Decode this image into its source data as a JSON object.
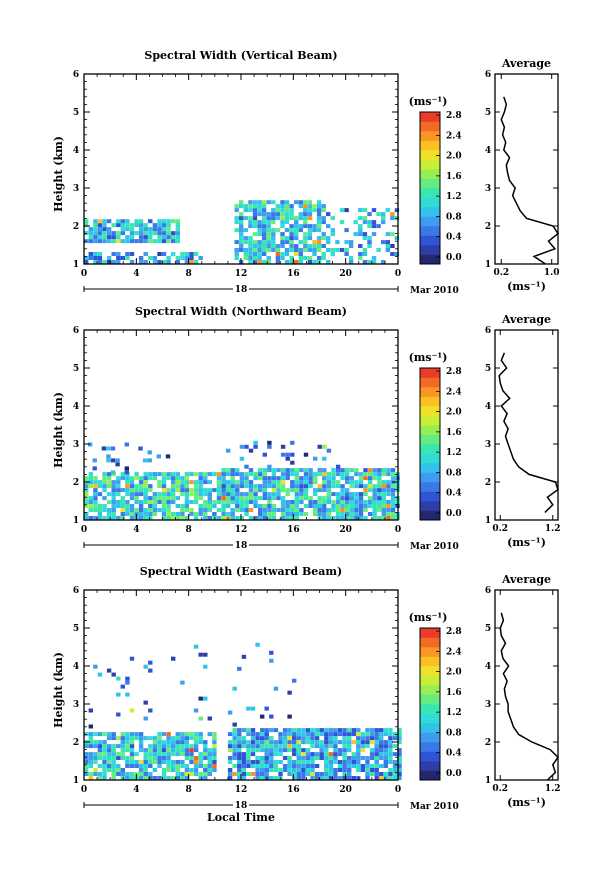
{
  "x_axis": {
    "ticks": [
      "0",
      "4",
      "8",
      "12",
      "16",
      "20",
      "0"
    ],
    "day": "18",
    "month": "Mar 2010",
    "label": "Local Time",
    "range": [
      0,
      24
    ]
  },
  "y_axis": {
    "label": "Height (km)",
    "ticks": [
      "1",
      "2",
      "3",
      "4",
      "5",
      "6"
    ],
    "range": [
      1,
      6
    ]
  },
  "colorbar": {
    "unit": "(ms⁻¹)",
    "ticks": [
      "0.0",
      "0.4",
      "0.8",
      "1.2",
      "1.6",
      "2.0",
      "2.4",
      "2.8"
    ],
    "colors": [
      "#23286e",
      "#2e3ea6",
      "#2f55d6",
      "#3a78e8",
      "#3f9cee",
      "#33c2e8",
      "#2fdcd6",
      "#3ae6b0",
      "#63ec82",
      "#97ef55",
      "#c8ee35",
      "#f0e22b",
      "#fbc024",
      "#fa9622",
      "#f46a24",
      "#eb3b2a"
    ]
  },
  "chart_data": [
    {
      "type": "heatmap",
      "title": "Spectral Width (Vertical Beam)",
      "xlabel": "",
      "ylabel": "Height (km)",
      "xlim": [
        0,
        24
      ],
      "ylim": [
        1,
        6
      ],
      "zlim": [
        0,
        3.0
      ],
      "regions": [
        {
          "t0": 0.0,
          "t1": 7.0,
          "h0": 1.55,
          "h1": 2.15,
          "base": 1.0,
          "density": 0.8
        },
        {
          "t0": 0.0,
          "t1": 9.0,
          "h0": 1.0,
          "h1": 1.3,
          "base": 0.9,
          "density": 0.6
        },
        {
          "t0": 11.5,
          "t1": 18.5,
          "h0": 1.0,
          "h1": 2.6,
          "base": 1.1,
          "density": 0.75
        },
        {
          "t0": 18.5,
          "t1": 24.0,
          "h0": 1.0,
          "h1": 2.4,
          "base": 0.9,
          "density": 0.35
        }
      ],
      "profile": {
        "title": "Average",
        "xlabel": "(ms⁻¹)",
        "xticks": [
          "0.2",
          "1.0"
        ],
        "xlim": [
          0.1,
          1.1
        ],
        "heights": [
          1.0,
          1.2,
          1.4,
          1.6,
          1.8,
          2.0,
          2.2,
          2.4,
          2.6,
          2.8,
          3.0,
          3.2,
          3.4,
          3.6,
          3.8,
          4.0,
          4.2,
          4.4,
          4.6,
          4.8,
          5.0,
          5.2,
          5.4
        ],
        "values": [
          0.9,
          0.72,
          1.05,
          0.95,
          1.1,
          1.02,
          0.6,
          0.5,
          0.44,
          0.38,
          0.42,
          0.33,
          0.3,
          0.28,
          0.33,
          0.24,
          0.27,
          0.22,
          0.25,
          0.2,
          0.25,
          0.28,
          0.24
        ]
      }
    },
    {
      "type": "heatmap",
      "title": "Spectral Width (Northward Beam)",
      "xlabel": "",
      "ylabel": "Height (km)",
      "xlim": [
        0,
        24
      ],
      "ylim": [
        1,
        6
      ],
      "zlim": [
        0,
        3.0
      ],
      "regions": [
        {
          "t0": 0.0,
          "t1": 10.5,
          "h0": 1.0,
          "h1": 2.2,
          "base": 1.2,
          "density": 0.8
        },
        {
          "t0": 0.3,
          "t1": 6.5,
          "h0": 2.2,
          "h1": 3.0,
          "base": 0.6,
          "density": 0.15
        },
        {
          "t0": 10.5,
          "t1": 24.0,
          "h0": 1.0,
          "h1": 2.35,
          "base": 1.1,
          "density": 0.85
        },
        {
          "t0": 10.5,
          "t1": 19.5,
          "h0": 2.35,
          "h1": 3.0,
          "base": 0.6,
          "density": 0.12
        }
      ],
      "profile": {
        "title": "Average",
        "xlabel": "(ms⁻¹)",
        "xticks": [
          "0.2",
          "1.2"
        ],
        "xlim": [
          0.1,
          1.3
        ],
        "heights": [
          1.2,
          1.4,
          1.6,
          1.8,
          2.0,
          2.2,
          2.4,
          2.6,
          2.8,
          3.0,
          3.2,
          3.4,
          3.6,
          3.8,
          4.0,
          4.2,
          4.4,
          4.6,
          4.8,
          5.0,
          5.2,
          5.4
        ],
        "values": [
          1.05,
          1.2,
          1.1,
          1.3,
          1.25,
          0.75,
          0.55,
          0.45,
          0.4,
          0.35,
          0.3,
          0.35,
          0.27,
          0.33,
          0.22,
          0.38,
          0.25,
          0.2,
          0.18,
          0.32,
          0.22,
          0.28
        ]
      }
    },
    {
      "type": "heatmap",
      "title": "Spectral Width (Eastward Beam)",
      "xlabel": "Local Time",
      "ylabel": "Height (km)",
      "xlim": [
        0,
        24
      ],
      "ylim": [
        1,
        6
      ],
      "zlim": [
        0,
        3.0
      ],
      "regions": [
        {
          "t0": 0.0,
          "t1": 10.0,
          "h0": 1.0,
          "h1": 2.25,
          "base": 1.1,
          "density": 0.8
        },
        {
          "t0": 0.0,
          "t1": 9.5,
          "h0": 2.25,
          "h1": 4.5,
          "base": 0.6,
          "density": 0.05
        },
        {
          "t0": 11.0,
          "t1": 24.0,
          "h0": 1.0,
          "h1": 2.3,
          "base": 0.95,
          "density": 0.85
        },
        {
          "t0": 11.0,
          "t1": 16.5,
          "h0": 2.3,
          "h1": 4.6,
          "base": 0.55,
          "density": 0.06
        }
      ],
      "profile": {
        "title": "Average",
        "xlabel": "(ms⁻¹)",
        "xticks": [
          "0.2",
          "1.2"
        ],
        "xlim": [
          0.1,
          1.3
        ],
        "heights": [
          1.0,
          1.2,
          1.4,
          1.6,
          1.8,
          2.0,
          2.2,
          2.4,
          2.6,
          2.8,
          3.0,
          3.2,
          3.4,
          3.6,
          3.8,
          4.0,
          4.2,
          4.4,
          4.6,
          4.8,
          5.0,
          5.2,
          5.4
        ],
        "values": [
          1.1,
          1.25,
          1.2,
          1.3,
          1.15,
          0.8,
          0.55,
          0.45,
          0.4,
          0.35,
          0.35,
          0.3,
          0.28,
          0.33,
          0.26,
          0.36,
          0.25,
          0.22,
          0.3,
          0.22,
          0.2,
          0.26,
          0.22
        ]
      }
    }
  ]
}
